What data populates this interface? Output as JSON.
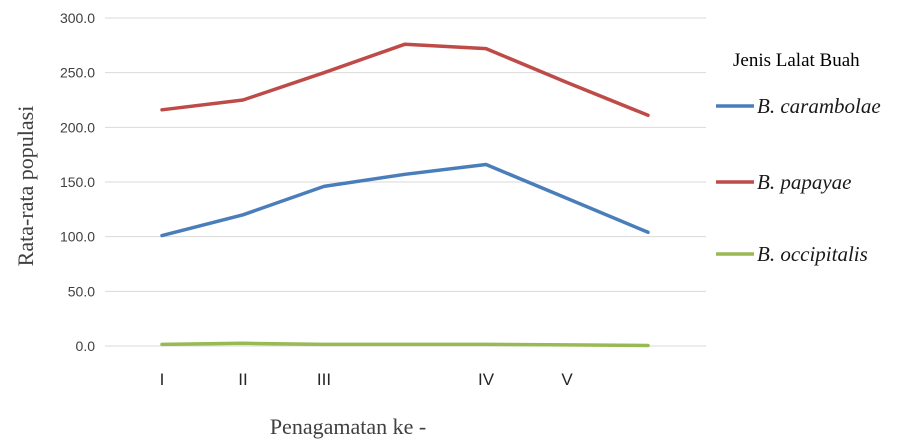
{
  "chart_data": {
    "type": "line",
    "categories": [
      "I",
      "II",
      "III",
      "",
      "IV",
      "V",
      ""
    ],
    "x_tick_labels": [
      "I",
      "II",
      "III",
      "IV",
      "V"
    ],
    "series": [
      {
        "name": "B. carambolae",
        "color": "#4a7ebb",
        "values": [
          101,
          120,
          146,
          157,
          166,
          135,
          104
        ]
      },
      {
        "name": "B. papayae",
        "color": "#be4b48",
        "values": [
          216,
          225,
          250,
          276,
          272,
          241,
          211
        ]
      },
      {
        "name": "B. occipitalis",
        "color": "#98b954",
        "values": [
          1.5,
          2.5,
          1.5,
          1.5,
          1.5,
          1.0,
          0.5
        ]
      }
    ],
    "y_ticks": [
      "0.0",
      "50.0",
      "100.0",
      "150.0",
      "200.0",
      "250.0",
      "300.0"
    ],
    "ylim": [
      0,
      300
    ],
    "xlabel": "Penagamatan ke -",
    "ylabel": "Rata-rata populasi",
    "legend_title": "Jenis Lalat Buah",
    "legend_position": "right",
    "grid": true
  }
}
